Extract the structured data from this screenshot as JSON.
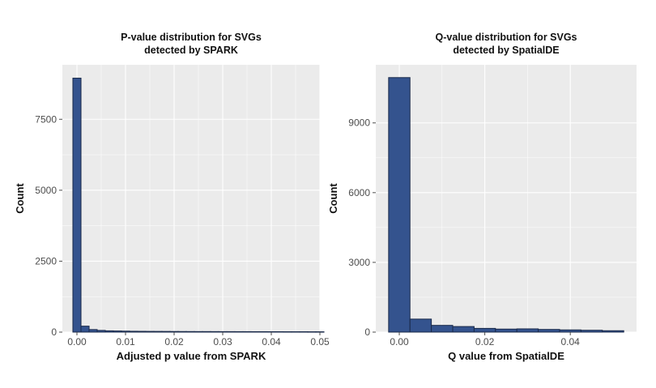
{
  "chart_data": [
    {
      "type": "bar",
      "title_lines": [
        "P-value distribution for SVGs",
        "detected by SPARK"
      ],
      "xlabel": "Adjusted p value from SPARK",
      "ylabel": "Count",
      "xlim": [
        -0.003,
        0.05
      ],
      "ylim": [
        0,
        9420
      ],
      "x_ticks": [
        0,
        0.01,
        0.02,
        0.03,
        0.04,
        0.05
      ],
      "x_tick_labels": [
        "0.00",
        "0.01",
        "0.02",
        "0.03",
        "0.04",
        "0.05"
      ],
      "y_ticks": [
        0,
        2500,
        5000,
        7500
      ],
      "y_tick_labels": [
        "0",
        "2500",
        "5000",
        "7500"
      ],
      "bin_width": 0.00167,
      "bin_centers": [
        0.0,
        0.00167,
        0.00333,
        0.005,
        0.00667,
        0.00833,
        0.01,
        0.01167,
        0.01333,
        0.015,
        0.01667,
        0.01833,
        0.02,
        0.02167,
        0.02333,
        0.025,
        0.02667,
        0.02833,
        0.03,
        0.03167,
        0.03333,
        0.035,
        0.03667,
        0.03833,
        0.04,
        0.04167,
        0.04333,
        0.045,
        0.04667,
        0.04833,
        0.05
      ],
      "values": [
        8950,
        210,
        90,
        60,
        45,
        40,
        35,
        30,
        28,
        26,
        25,
        24,
        22,
        21,
        20,
        19,
        19,
        18,
        17,
        17,
        16,
        16,
        15,
        15,
        14,
        14,
        13,
        13,
        13,
        12,
        12
      ],
      "fill_color": "#34538e",
      "grid": true
    },
    {
      "type": "bar",
      "title_lines": [
        "Q-value distribution for SVGs",
        "detected by SpatialDE"
      ],
      "xlabel": "Q value from SpatialDE",
      "ylabel": "Count",
      "xlim": [
        -0.0055,
        0.0555
      ],
      "ylim": [
        0,
        11500
      ],
      "x_ticks": [
        0,
        0.02,
        0.04
      ],
      "x_tick_labels": [
        "0.00",
        "0.02",
        "0.04"
      ],
      "y_ticks": [
        0,
        3000,
        6000,
        9000
      ],
      "y_tick_labels": [
        "0",
        "3000",
        "6000",
        "9000"
      ],
      "bin_width": 0.005,
      "bin_centers": [
        0.0,
        0.005,
        0.01,
        0.015,
        0.02,
        0.025,
        0.03,
        0.035,
        0.04,
        0.045,
        0.05
      ],
      "values": [
        10950,
        560,
        290,
        240,
        160,
        130,
        140,
        115,
        95,
        80,
        60
      ],
      "fill_color": "#34538e",
      "grid": true
    }
  ]
}
